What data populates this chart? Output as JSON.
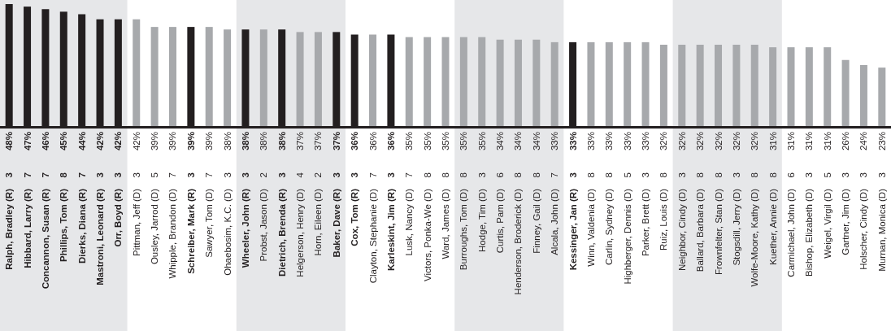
{
  "chart_data": {
    "type": "bar",
    "categories": [
      "Ralph, Bradley (R)",
      "Hibbard, Larry (R)",
      "Concannon, Susan (R)",
      "Phillips, Tom (R)",
      "Dierks, Diana (R)",
      "Mastroni, Leonard (R)",
      "Orr, Boyd (R)",
      "Pittman, Jeff (D)",
      "Ousley, Jarrod (D)",
      "Whipple, Brandon (D)",
      "Schreiber, Mark (R)",
      "Sawyer, Tom (D)",
      "Ohaebosim, K.C. (D)",
      "Wheeler, John (R)",
      "Probst, Jason (D)",
      "Dietrich, Brenda (R)",
      "Helgerson, Henry (D)",
      "Horn, Eileen (D)",
      "Baker, Dave (R)",
      "Cox, Tom (R)",
      "Clayton, Stephanie (D)",
      "Karleskint, Jim (R)",
      "Lusk, Nancy (D)",
      "Victors, Ponka-We (D)",
      "Ward, James (D)",
      "Burroughs, Tom (D)",
      "Hodge, Tim (D)",
      "Curtis, Pam (D)",
      "Henderson, Broderick (D)",
      "Finney, Gail (D)",
      "Alcala, John (D)",
      "Kessinger, Jan (R)",
      "Winn, Valdenia (D)",
      "Carlin, Sydney (D)",
      "Highberger, Dennis (D)",
      "Parker, Brett (D)",
      "Ruiz, Louis (D)",
      "Neighbor, Cindy (D)",
      "Ballard, Barbara (D)",
      "Frownfelter, Stan (D)",
      "Stogsdill, Jerry (D)",
      "Wolfe-Moore, Kathy (D)",
      "Kuether, Annie (D)",
      "Carmichael, John (D)",
      "Bishop, Elizabeth (D)",
      "Weigel, Virgil (D)",
      "Gartner, Jim (D)",
      "Holscher, Cindy (D)",
      "Murnan, Monica (D)"
    ],
    "values": [
      48,
      47,
      46,
      45,
      44,
      42,
      42,
      42,
      39,
      39,
      39,
      39,
      38,
      38,
      38,
      38,
      37,
      37,
      37,
      36,
      36,
      36,
      35,
      35,
      35,
      35,
      35,
      34,
      34,
      34,
      33,
      33,
      33,
      33,
      33,
      33,
      32,
      32,
      32,
      32,
      32,
      32,
      31,
      31,
      31,
      31,
      26,
      24,
      23
    ],
    "value_labels": [
      "48%",
      "47%",
      "46%",
      "45%",
      "44%",
      "42%",
      "42%",
      "42%",
      "39%",
      "39%",
      "39%",
      "39%",
      "38%",
      "38%",
      "38%",
      "38%",
      "37%",
      "37%",
      "37%",
      "36%",
      "36%",
      "36%",
      "35%",
      "35%",
      "35%",
      "35%",
      "35%",
      "34%",
      "34%",
      "34%",
      "33%",
      "33%",
      "33%",
      "33%",
      "33%",
      "33%",
      "32%",
      "32%",
      "32%",
      "32%",
      "32%",
      "32%",
      "31%",
      "31%",
      "31%",
      "31%",
      "26%",
      "24%",
      "23%"
    ],
    "colors": [
      "#231f20",
      "#231f20",
      "#231f20",
      "#231f20",
      "#231f20",
      "#231f20",
      "#231f20",
      "#a7a9ac",
      "#a7a9ac",
      "#a7a9ac",
      "#231f20",
      "#a7a9ac",
      "#a7a9ac",
      "#231f20",
      "#a7a9ac",
      "#231f20",
      "#a7a9ac",
      "#a7a9ac",
      "#231f20",
      "#231f20",
      "#a7a9ac",
      "#231f20",
      "#a7a9ac",
      "#a7a9ac",
      "#a7a9ac",
      "#a7a9ac",
      "#a7a9ac",
      "#a7a9ac",
      "#a7a9ac",
      "#a7a9ac",
      "#a7a9ac",
      "#231f20",
      "#a7a9ac",
      "#a7a9ac",
      "#a7a9ac",
      "#a7a9ac",
      "#a7a9ac",
      "#a7a9ac",
      "#a7a9ac",
      "#a7a9ac",
      "#a7a9ac",
      "#a7a9ac",
      "#a7a9ac",
      "#a7a9ac",
      "#a7a9ac",
      "#a7a9ac",
      "#a7a9ac",
      "#a7a9ac",
      "#a7a9ac"
    ],
    "bands": [
      {
        "axis": "x",
        "from": "Ralph, Bradley (R)",
        "to": "Orr, Boyd (R)",
        "color": "#e6e7e9"
      },
      {
        "axis": "x",
        "from": "Wheeler, John (R)",
        "to": "Baker, Dave (R)",
        "color": "#e6e7e9"
      },
      {
        "axis": "x",
        "from": "Burroughs, Tom (D)",
        "to": "Alcala, John (D)",
        "color": "#e6e7e9"
      },
      {
        "axis": "x",
        "from": "Neighbor, Cindy (D)",
        "to": "Kuether, Annie (D)",
        "color": "#e6e7e9"
      }
    ],
    "annotations": [
      "3",
      "7",
      "7",
      "8",
      "7",
      "3",
      "3",
      "3",
      "5",
      "7",
      "3",
      "7",
      "3",
      "3",
      "2",
      "3",
      "4",
      "2",
      "3",
      "3",
      "7",
      "3",
      "7",
      "8",
      "8",
      "8",
      "3",
      "6",
      "8",
      "8",
      "7",
      "3",
      "8",
      "8",
      "5",
      "3",
      "8",
      "3",
      "8",
      "8",
      "3",
      "8",
      "8",
      "6",
      "3",
      "5",
      "3",
      "3",
      "3"
    ]
  }
}
